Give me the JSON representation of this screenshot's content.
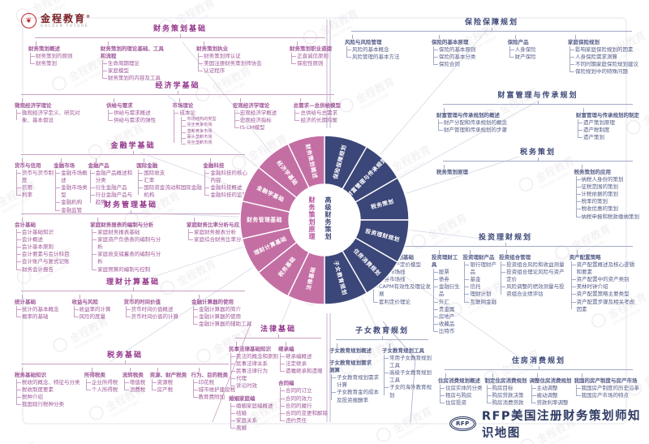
{
  "brand": {
    "name": "金程教育",
    "reg": "®",
    "sub": "GOLDEN FUTURE"
  },
  "footer": {
    "badge": "RFP",
    "title": "RFP美国注册财务策划师知识地图"
  },
  "palette": {
    "left_accent": "#a0599a",
    "left_title": "#93338a",
    "left_line": "#c9a0c4",
    "right_accent": "#555d88",
    "right_title": "#3d4878",
    "right_line": "#a3aac6",
    "wheel_left": "#c46fa4",
    "wheel_right": "#3b4679",
    "brand_red": "#c01f26"
  },
  "wheel": {
    "center_left": "财务策划原理",
    "center_right": "高级财务策划",
    "left_color": "#c46fa4",
    "right_color": "#3b4679",
    "left_segments": [
      "财务策划概述",
      "经济学基础",
      "金融学基础",
      "财务管理基础",
      "理财计算基础",
      "税务基础",
      "法律基础"
    ],
    "right_segments": [
      "保险保障规划",
      "财富管理与传承规划",
      "税务策划",
      "投资理财规划",
      "住房消费规划",
      "子女教育规划"
    ]
  },
  "sections": [
    {
      "id": "fpb",
      "title": "财务策划基础",
      "side": "left",
      "columns": [
        [
          {
            "label": "财务策划概述",
            "children": [
              "财务策划的原则",
              "财务策划"
            ]
          }
        ],
        [
          {
            "label": "财务策划的理论基础、工具和流程",
            "children": [
              "生命周期理论",
              "家庭模型",
              "财务策划的内容及工具"
            ]
          }
        ],
        [
          {
            "label": "财务策划执业",
            "children": [
              "财务策划师认证",
              "美国注册财务策划师协会",
              "认证程序"
            ]
          }
        ],
        [
          {
            "label": "财务策划职业道德",
            "children": [
              "正直诚信原则",
              "保密性原则"
            ]
          }
        ]
      ]
    },
    {
      "id": "econ",
      "title": "经济学基础",
      "side": "left",
      "columns": [
        [
          {
            "label": "微观经济学理论",
            "children": [
              "微观经济学定义、研究对象、基本假设"
            ]
          }
        ],
        [
          {
            "label": "供给与需求",
            "children": [
              "供给与需求概述",
              "供给与需求的弹性"
            ]
          }
        ],
        [
          {
            "label": "市场理论",
            "children": [
              {
                "label": "成本论",
                "children": [
                  "市场结构的类型",
                  "完全竞争市场",
                  "垄断竞争市场",
                  "寡头垄断市场",
                  "完全垄断市场"
                ]
              }
            ]
          }
        ],
        [
          {
            "label": "宏观经济学理论",
            "children": [
              "宏观经济学概述",
              "宏观经济指标",
              "IS-LM模型"
            ]
          }
        ],
        [
          {
            "label": "总需求—总供给模型",
            "children": [
              "总供给与总需求",
              "经济的长期均衡"
            ]
          }
        ]
      ]
    },
    {
      "id": "fin",
      "title": "金融学基础",
      "side": "left",
      "columns": [
        [
          {
            "label": "货币与信用",
            "children": [
              "货币与货币制度",
              "信用",
              "利率"
            ]
          }
        ],
        [
          {
            "label": "金融市场",
            "children": [
              "金融市场概述",
              "金融市场类型",
              "金融机构",
              "金融监管"
            ]
          }
        ],
        [
          {
            "label": "金融产品",
            "children": [
              "金融产品概述和分类",
              "衍生金融产品",
              "行业金融产品与趋势"
            ]
          }
        ],
        [
          {
            "label": "国际金融",
            "children": [
              "国际收支",
              "汇率",
              "国际资金流动和国际金融机构"
            ]
          }
        ],
        [
          {
            "label": "金融科技",
            "children": [
              "金融科技的核心内容",
              "金融科技概述",
              "金融科技的监管"
            ]
          }
        ]
      ]
    },
    {
      "id": "fm",
      "title": "财务管理基础",
      "side": "left",
      "columns": [
        [
          {
            "label": "会计基础",
            "children": [
              "会计基础知识",
              "会计概述",
              "会计基本原则",
              "会计要素与会计科目",
              "会计账户与复式记账",
              "财务会计报告"
            ]
          }
        ],
        [
          {
            "label": "家庭财务报表的编制与分析",
            "children": [
              "家庭财务报表基础",
              "家庭资产负债表的编制与分析",
              "家庭收支储蓄表的编制与分析",
              "家庭预算的编制与控制"
            ]
          }
        ],
        [
          {
            "label": "家庭财务比率分析与应用",
            "children": [
              "家庭财务报表分析",
              "家庭综合财务比率分析"
            ]
          }
        ]
      ]
    },
    {
      "id": "calc",
      "title": "理财计算基础",
      "side": "left",
      "columns": [
        [
          {
            "label": "统计基础",
            "children": [
              "统计的基本概念",
              "概率的基础"
            ]
          }
        ],
        [
          {
            "label": "收益与风险",
            "children": [
              "收益率的计算",
              "风险的度量"
            ]
          }
        ],
        [
          {
            "label": "货币的时间价值",
            "children": [
              "货币时间价值概述",
              "货币时间价值的计算"
            ]
          }
        ],
        [
          {
            "label": "金融计算器的使用",
            "children": [
              "金融计算器的简介",
              "金融计算器的使用",
              "金融计算器的辅助工具"
            ]
          }
        ]
      ]
    },
    {
      "id": "taxb",
      "title": "税务基础",
      "side": "left",
      "columns": [
        [
          {
            "label": "税务基础知识",
            "children": [
              "税收的概念、特征与分类",
              "税收制度要素",
              "税种介绍",
              "我国现行税种分类"
            ]
          }
        ],
        [
          {
            "label": "所得税类",
            "children": [
              "企业所得税",
              "个人所得税"
            ]
          }
        ],
        [
          {
            "label": "流转税类",
            "children": [
              "增值税",
              "消费税"
            ]
          }
        ],
        [
          {
            "label": "资源、财产税类",
            "children": [
              "资源税",
              "房产税"
            ]
          }
        ],
        [
          {
            "label": "行为、目的税类",
            "children": [
              "印花税",
              "城市维护建设税",
              "教育费附加"
            ]
          }
        ]
      ]
    },
    {
      "id": "law",
      "title": "法律基础",
      "side": "left",
      "columns": [
        [
          {
            "label": "民事法律基础知识",
            "children": [
              "民法的概念和原则",
              "民事法律关系",
              "民事法律行为",
              "代理",
              "诉讼时效"
            ]
          },
          {
            "label": "婚姻家庭编",
            "children": [
              "婚姻家庭编概述",
              "结婚",
              "家庭关系",
              "离婚"
            ]
          }
        ],
        [
          {
            "label": "继承编",
            "children": [
              "继承编概述",
              "法定继承",
              "遗嘱继承和遗赠"
            ]
          },
          {
            "label": "合同编",
            "children": [
              "合同的订立",
              "合同的效力",
              "合同的履行",
              "合同的变更和解除",
              "违约责任"
            ]
          }
        ]
      ]
    },
    {
      "id": "ins",
      "title": "保险保障规划",
      "side": "right",
      "columns": [
        [
          {
            "label": "风险与风险管理",
            "children": [
              "风险的基本概念",
              "风险管理的基本方法"
            ]
          }
        ],
        [
          {
            "label": "保险的基本原理",
            "children": [
              "保险的基本原则",
              "保险的基本分类",
              "保险合同"
            ]
          }
        ],
        [
          {
            "label": "保险产品",
            "children": [
              "人身保险",
              "财产保险"
            ]
          }
        ],
        [
          {
            "label": "家庭保险规划",
            "children": [
              "影响家庭保险规划的因素",
              "人身保险需求测算",
              "不同时期家庭保险规划建议",
              "保险规划中的特殊问题"
            ]
          }
        ]
      ]
    },
    {
      "id": "wealth",
      "title": "财富管理与传承规划",
      "side": "right",
      "columns": [
        [
          {
            "label": "财富管理与传承规划的概述",
            "children": [
              "财产分配和传承规划的概念",
              "财产管理和传承规划的步骤"
            ]
          }
        ],
        [
          {
            "label": "财富管理与传承规划的制定",
            "children": [
              "遗产策划原理",
              "遗产税制度",
              "遗产策划"
            ]
          }
        ]
      ]
    },
    {
      "id": "taxp",
      "title": "税务策划",
      "side": "right",
      "columns": [
        [
          {
            "label": "税务策划原理",
            "children": []
          }
        ],
        [
          {
            "label": "税务策划的应用",
            "children": [
              "纳税人身份的策划",
              "征税范围的策划",
              "计税依据的策划",
              "税率的策划",
              "税收优惠的策划",
              "纳税申报和税款缴纳策划"
            ]
          }
        ]
      ]
    },
    {
      "id": "inv",
      "title": "投资理财规划",
      "side": "right",
      "columns": [
        [
          {
            "label": "投资理财规划基础",
            "children": [
              "资本资产定价模型",
              "资本市场线",
              "证券市场线",
              "CAPM有效性及理论发展",
              "套利定价理论"
            ]
          }
        ],
        [
          {
            "label": "投资理财工具",
            "children": [
              "股票",
              "债券",
              "金融衍生品",
              "外汇",
              "贵金属",
              "房地产",
              "收藏品",
              "比特币"
            ]
          }
        ],
        [
          {
            "label": "投资理财产品",
            "children": [
              "银行理财产品",
              "基金",
              "信托",
              "理财计划",
              "互联网金融"
            ]
          }
        ],
        [
          {
            "label": "投资组合管理",
            "children": [
              "投资组合风险和收益测量",
              "投资组合理论风险与资产定价",
              "风险调整的绩效测量与投资组合业绩评估"
            ]
          }
        ],
        [
          {
            "label": "资产配置策略",
            "children": [
              "资产配置概述及核心逻辑和要素",
              "资产配置中的资产类别",
              "美林时钟介绍",
              "资产配置策略主要类型",
              "资产配置步骤及相关考虑因素"
            ]
          }
        ]
      ]
    },
    {
      "id": "edu",
      "title": "子女教育规划",
      "side": "right",
      "columns": [
        [
          {
            "label": "子女教育规划概述",
            "children": []
          },
          {
            "label": "子女教育规划需求测算",
            "children": [
              "子女教育规划需求计算",
              "子女教育金的成本及投资报酬率"
            ]
          }
        ],
        [
          {
            "label": "子女教育规划工具",
            "children": [
              "常用子女教育规划工具",
              "高级子女教育规划工具",
              "子女的海外教育规划"
            ]
          }
        ]
      ]
    },
    {
      "id": "house",
      "title": "住房消费规划",
      "side": "right",
      "columns": [
        [
          {
            "label": "住房消费规划概述",
            "children": [
              "住房实体的分类",
              "租房与购房",
              "住房投资"
            ]
          }
        ],
        [
          {
            "label": "制定住房消费规划",
            "children": [
              "购房目标",
              "购房贷款决策",
              "购房消费贷款"
            ]
          }
        ],
        [
          {
            "label": "调整住房消费规划",
            "children": [
              "主动调整",
              "被动调整",
              "贷款利率调整"
            ]
          }
        ],
        [
          {
            "label": "我国的房产制度与房产市场",
            "children": [
              "我国房产制度的历史沿革",
              "我国房产市场的特点"
            ]
          }
        ]
      ]
    }
  ]
}
